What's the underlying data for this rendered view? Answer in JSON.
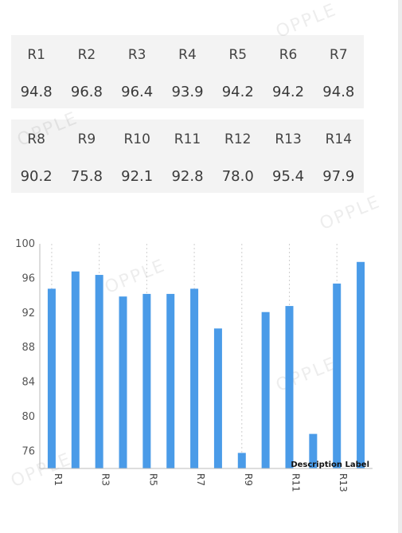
{
  "tables": [
    {
      "headers": [
        "R1",
        "R2",
        "R3",
        "R4",
        "R5",
        "R6",
        "R7"
      ],
      "values": [
        "94.8",
        "96.8",
        "96.4",
        "93.9",
        "94.2",
        "94.2",
        "94.8"
      ]
    },
    {
      "headers": [
        "R8",
        "R9",
        "R10",
        "R11",
        "R12",
        "R13",
        "R14"
      ],
      "values": [
        "90.2",
        "75.8",
        "92.1",
        "92.8",
        "78.0",
        "95.4",
        "97.9"
      ]
    }
  ],
  "watermark": "OPPLE",
  "chart_data": {
    "type": "bar",
    "categories": [
      "R1",
      "R2",
      "R3",
      "R4",
      "R5",
      "R6",
      "R7",
      "R8",
      "R9",
      "R10",
      "R11",
      "R12",
      "R13",
      "R14"
    ],
    "values": [
      94.8,
      96.8,
      96.4,
      93.9,
      94.2,
      94.2,
      94.8,
      90.2,
      75.8,
      92.1,
      92.8,
      78.0,
      95.4,
      97.9
    ],
    "x_tick_labels": [
      "R1",
      "R3",
      "R5",
      "R7",
      "R9",
      "R11",
      "R13"
    ],
    "y_ticks": [
      76,
      80,
      84,
      88,
      92,
      96,
      100
    ],
    "ylim": [
      74,
      100
    ],
    "bar_color": "#4a9be8",
    "annotation": "Description Label",
    "grid": "vertical dotted"
  }
}
